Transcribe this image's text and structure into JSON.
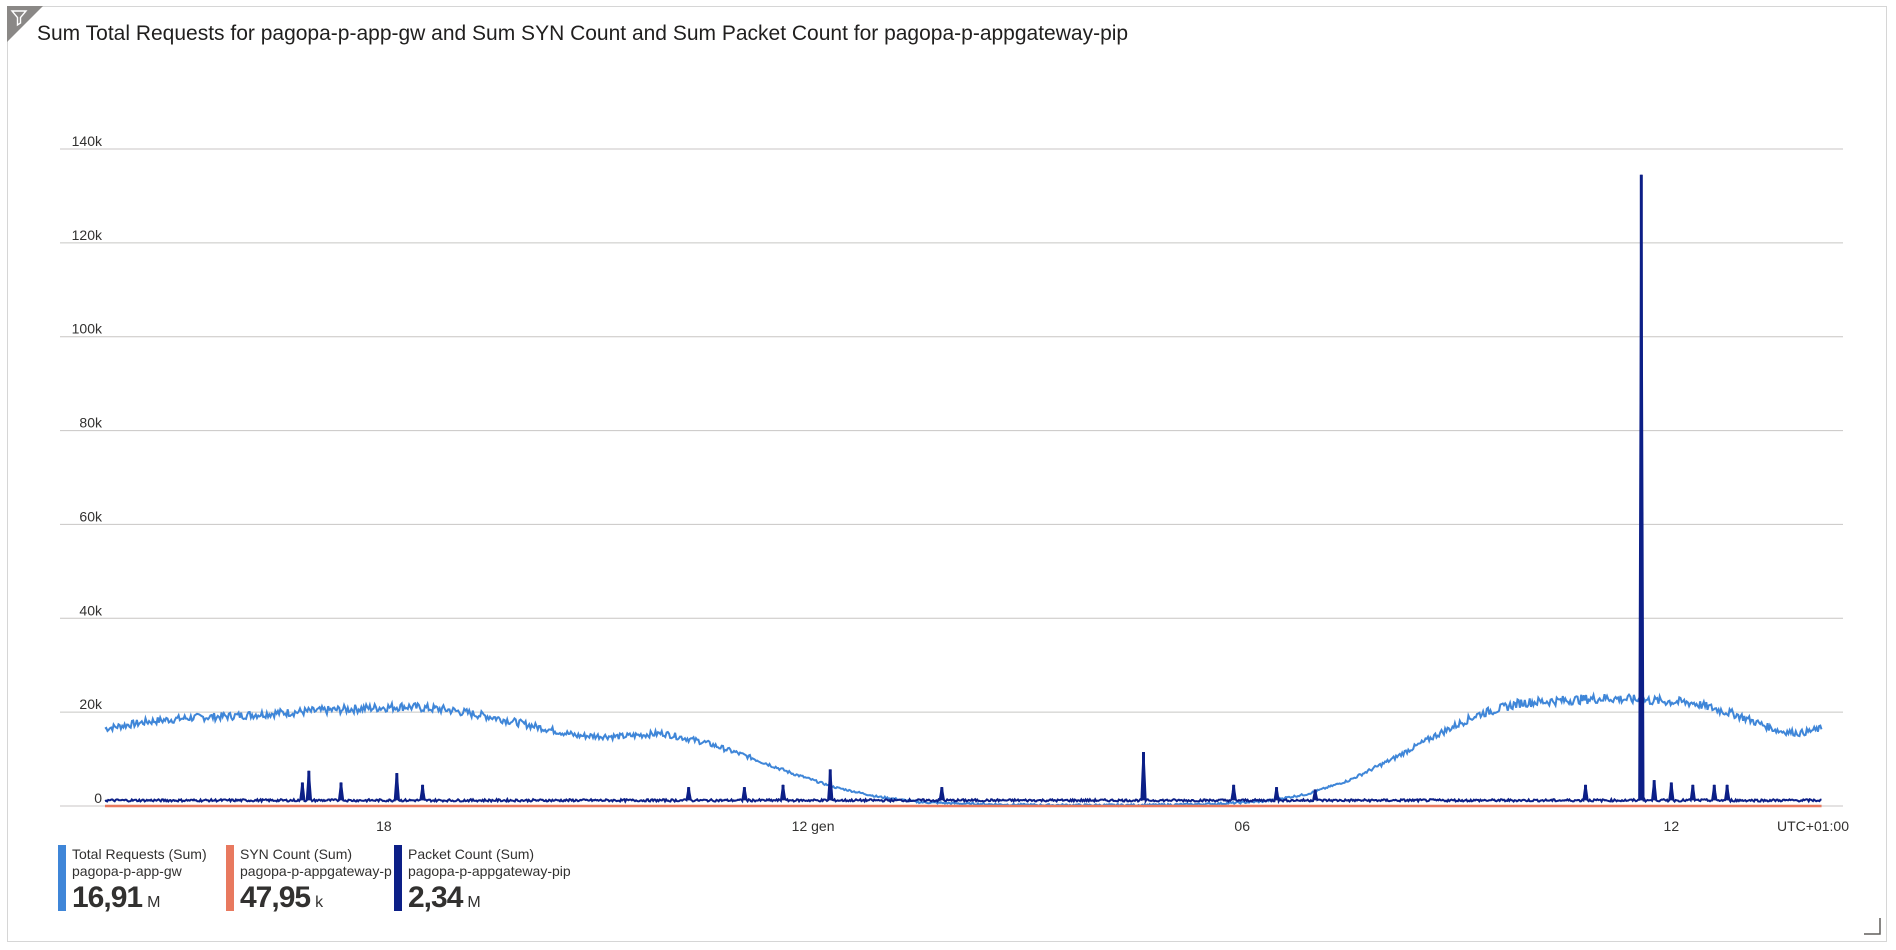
{
  "title": "Sum Total Requests for pagopa-p-app-gw and Sum SYN Count and Sum Packet Count for pagopa-p-appgateway-pip",
  "timezone_label": "UTC+01:00",
  "icons": {
    "filter": "filter-icon",
    "resize": "resize-handle-icon"
  },
  "legend": [
    {
      "name": "Total Requests (Sum)",
      "resource": "pagopa-p-app-gw",
      "value": "16,91",
      "unit": "M",
      "color": "#3f86d8"
    },
    {
      "name": "SYN Count (Sum)",
      "resource": "pagopa-p-appgateway-pip",
      "value": "47,95",
      "unit": "k",
      "color": "#e8795f"
    },
    {
      "name": "Packet Count (Sum)",
      "resource": "pagopa-p-appgateway-pip",
      "value": "2,34",
      "unit": "M",
      "color": "#0c1f87"
    }
  ],
  "chart_data": {
    "type": "line",
    "title": "Sum Total Requests for pagopa-p-app-gw and Sum SYN Count and Sum Packet Count for pagopa-p-appgateway-pip",
    "x_unit": "hours from the start of the time range",
    "x_range": [
      0,
      40.5
    ],
    "x_ticks": [
      {
        "x": 6.5,
        "label": "18"
      },
      {
        "x": 16.5,
        "label": "12 gen"
      },
      {
        "x": 26.5,
        "label": "06"
      },
      {
        "x": 36.5,
        "label": "12"
      }
    ],
    "y_ticks": [
      {
        "y": 0,
        "label": "0"
      },
      {
        "y": 20000,
        "label": "20k"
      },
      {
        "y": 40000,
        "label": "40k"
      },
      {
        "y": 60000,
        "label": "60k"
      },
      {
        "y": 80000,
        "label": "80k"
      },
      {
        "y": 100000,
        "label": "100k"
      },
      {
        "y": 120000,
        "label": "120k"
      },
      {
        "y": 140000,
        "label": "140k"
      }
    ],
    "ylim": [
      0,
      140000
    ],
    "grid": true,
    "legend_position": "bottom-left",
    "series": [
      {
        "name": "Total Requests (Sum)",
        "color": "#3f86d8",
        "x": [
          0,
          1,
          2,
          3,
          4,
          5,
          6,
          7,
          8,
          9,
          10,
          11,
          12,
          13,
          14,
          15,
          16,
          17,
          18,
          19,
          20,
          21,
          22,
          23,
          24,
          25,
          26,
          27,
          28,
          29,
          30,
          31,
          32,
          33,
          34,
          35,
          36,
          37,
          38,
          39,
          39.5,
          40
        ],
        "y": [
          16500,
          18000,
          18800,
          19200,
          19800,
          20300,
          20800,
          21200,
          20500,
          19000,
          17000,
          15000,
          14800,
          15500,
          13500,
          10500,
          7000,
          4000,
          2000,
          800,
          500,
          300,
          200,
          200,
          200,
          300,
          500,
          1000,
          2500,
          5500,
          10000,
          15000,
          19500,
          22000,
          22500,
          23000,
          22500,
          22000,
          19500,
          16000,
          15500,
          16500
        ]
      },
      {
        "name": "SYN Count (Sum)",
        "color": "#e8795f",
        "x": [
          0,
          40
        ],
        "y": [
          0,
          0
        ]
      },
      {
        "name": "Packet Count (Sum)",
        "color": "#0c1f87",
        "baseline": 1200,
        "x": [
          0,
          4.6,
          4.75,
          5.5,
          6.8,
          7.4,
          13.6,
          14.9,
          15.8,
          16.9,
          19.5,
          24.2,
          26.3,
          27.3,
          28.2,
          34.5,
          35.8,
          36.1,
          36.5,
          37,
          37.5,
          37.8,
          40
        ],
        "y": [
          1200,
          5000,
          7500,
          5000,
          7000,
          4500,
          4000,
          4000,
          4500,
          7800,
          4000,
          11500,
          4500,
          4000,
          3500,
          4500,
          134500,
          5500,
          5000,
          4500,
          4500,
          4500,
          1200
        ]
      }
    ]
  }
}
